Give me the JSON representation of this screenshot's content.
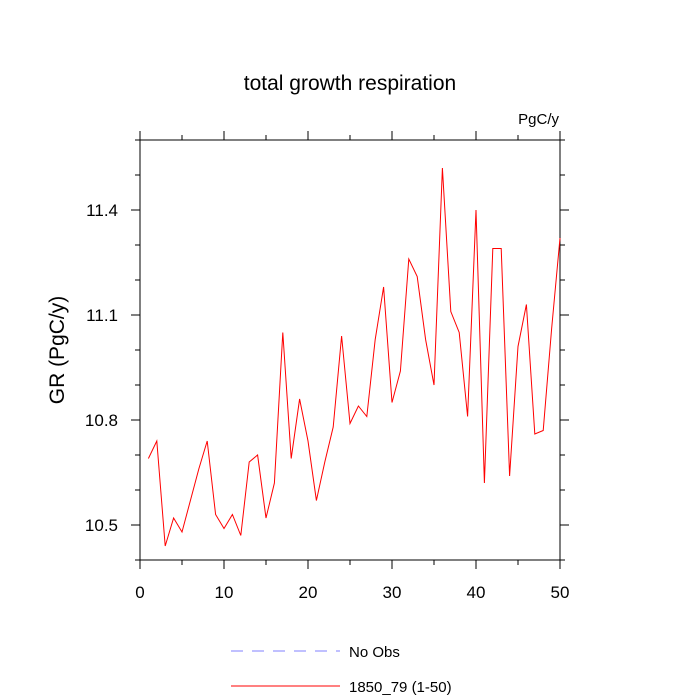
{
  "chart_data": {
    "type": "line",
    "title": "total growth respiration",
    "units_label": "PgC/y",
    "xlabel": "",
    "ylabel": "GR  (PgC/y)",
    "xlim": [
      0,
      50
    ],
    "ylim": [
      10.4,
      11.6
    ],
    "x_ticks": [
      0,
      10,
      20,
      30,
      40,
      50
    ],
    "x_tick_labels": [
      "0",
      "10",
      "20",
      "30",
      "40",
      "50"
    ],
    "y_ticks": [
      10.5,
      10.8,
      11.1,
      11.4
    ],
    "y_tick_labels": [
      "10.5",
      "10.8",
      "11.1",
      "11.4"
    ],
    "grid": false,
    "legend_position": "bottom-center",
    "series": [
      {
        "name": "1850_79 (1-50)",
        "color": "#ff0000",
        "style": "solid",
        "x": [
          1,
          2,
          3,
          4,
          5,
          6,
          7,
          8,
          9,
          10,
          11,
          12,
          13,
          14,
          15,
          16,
          17,
          18,
          19,
          20,
          21,
          22,
          23,
          24,
          25,
          26,
          27,
          28,
          29,
          30,
          31,
          32,
          33,
          34,
          35,
          36,
          37,
          38,
          39,
          40,
          41,
          42,
          43,
          44,
          45,
          46,
          47,
          48,
          49,
          50
        ],
        "values": [
          10.69,
          10.74,
          10.44,
          10.52,
          10.48,
          10.57,
          10.66,
          10.74,
          10.53,
          10.49,
          10.53,
          10.47,
          10.68,
          10.7,
          10.52,
          10.62,
          11.05,
          10.69,
          10.86,
          10.74,
          10.57,
          10.68,
          10.78,
          11.04,
          10.79,
          10.84,
          10.81,
          11.03,
          11.18,
          10.85,
          10.94,
          11.26,
          11.21,
          11.03,
          10.9,
          11.52,
          11.11,
          11.05,
          10.81,
          11.4,
          10.62,
          11.29,
          11.29,
          10.64,
          11.01,
          11.13,
          10.76,
          10.77,
          11.06,
          11.32
        ]
      },
      {
        "name": "No Obs",
        "color": "#8080ff",
        "style": "dashed",
        "x": [],
        "values": []
      }
    ]
  }
}
